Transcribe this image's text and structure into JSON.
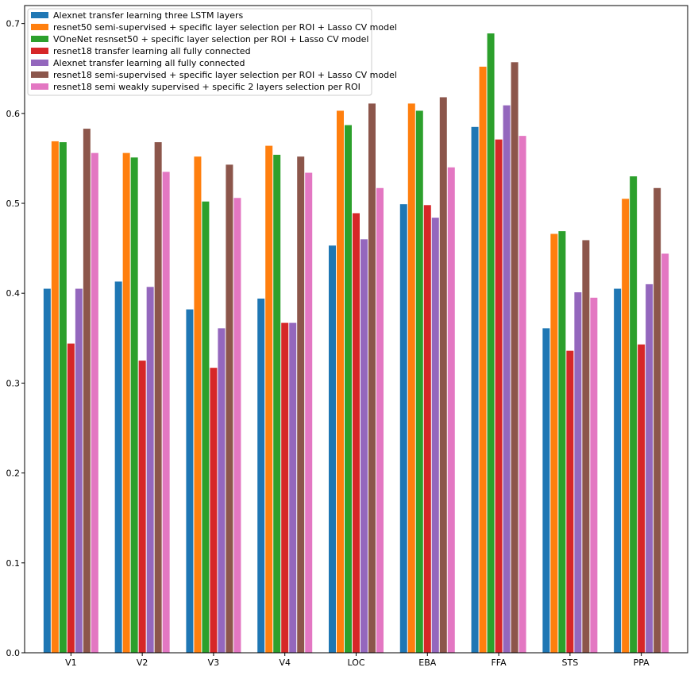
{
  "chart_data": {
    "type": "bar",
    "title": "",
    "xlabel": "",
    "ylabel": "",
    "ylim": [
      0,
      0.72
    ],
    "yticks": [
      0.0,
      0.1,
      0.2,
      0.3,
      0.4,
      0.5,
      0.6,
      0.7
    ],
    "ytick_labels": [
      "0.0",
      "0.1",
      "0.2",
      "0.3",
      "0.4",
      "0.5",
      "0.6",
      "0.7"
    ],
    "grid": false,
    "legend_position": "top-left",
    "categories": [
      "V1",
      "V2",
      "V3",
      "V4",
      "LOC",
      "EBA",
      "FFA",
      "STS",
      "PPA"
    ],
    "series": [
      {
        "name": "Alexnet transfer learning three LSTM layers",
        "color": "#1f77b4",
        "values": [
          0.405,
          0.413,
          0.382,
          0.394,
          0.453,
          0.499,
          0.585,
          0.361,
          0.405
        ]
      },
      {
        "name": "resnet50 semi-supervised + specific layer selection per ROI + Lasso CV model",
        "color": "#ff7f0e",
        "values": [
          0.569,
          0.556,
          0.552,
          0.564,
          0.603,
          0.611,
          0.652,
          0.466,
          0.505
        ]
      },
      {
        "name": "VOneNet resnset50 + specific layer selection per ROI + Lasso CV model",
        "color": "#2ca02c",
        "values": [
          0.568,
          0.551,
          0.502,
          0.554,
          0.587,
          0.603,
          0.689,
          0.469,
          0.53
        ]
      },
      {
        "name": "resnet18 transfer learning all fully connected",
        "color": "#d62728",
        "values": [
          0.344,
          0.325,
          0.317,
          0.367,
          0.489,
          0.498,
          0.571,
          0.336,
          0.343
        ]
      },
      {
        "name": "Alexnet transfer learning all fully connected",
        "color": "#9467bd",
        "values": [
          0.405,
          0.407,
          0.361,
          0.367,
          0.46,
          0.484,
          0.609,
          0.401,
          0.41
        ]
      },
      {
        "name": " resnet18 semi-supervised + specific layer selection per ROI + Lasso CV model",
        "color": "#8c564b",
        "values": [
          0.583,
          0.568,
          0.543,
          0.552,
          0.611,
          0.618,
          0.657,
          0.459,
          0.517
        ]
      },
      {
        "name": "resnet18 semi weakly supervised + specific 2 layers selection per ROI",
        "color": "#e377c2",
        "values": [
          0.556,
          0.535,
          0.506,
          0.534,
          0.517,
          0.54,
          0.575,
          0.395,
          0.444
        ]
      }
    ]
  }
}
